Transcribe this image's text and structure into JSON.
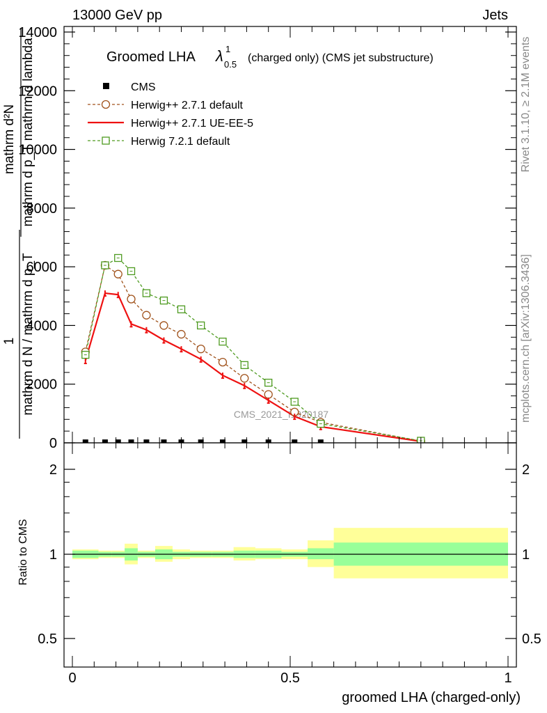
{
  "header": {
    "energy_label": "13000 GeV pp",
    "category_label": "Jets"
  },
  "side_labels": {
    "rivet": "Rivet 3.1.10, ≥ 2.1M events",
    "mcplots": "mcplots.cern.ch [arXiv:1306.3436]"
  },
  "watermark": "CMS_2021_I1920187",
  "colors": {
    "cms": "#000000",
    "herwig_default": "#a0521b",
    "herwig_ueee5": "#ee1111",
    "herwig72": "#4d9a1f",
    "band_inner": "#99ff99",
    "band_outer": "#ffff99"
  },
  "chart_data": [
    {
      "type": "line",
      "title_main": "Groomed LHA",
      "title_symbol": "λ",
      "title_sup": "1",
      "title_sub": "0.5",
      "title_rest": "(charged only) (CMS jet substructure)",
      "ylabel_top": "mathrm d²N",
      "ylabel_bottom": "mathrm d p_T mathrm d lambda",
      "ylabel_factor_num": "1",
      "ylabel_factor_den": "mathrm d N / mathrm d p_T",
      "xlim": [
        -0.02,
        1.02
      ],
      "ylim": [
        0,
        14000
      ],
      "yticks": [
        0,
        2000,
        4000,
        6000,
        8000,
        10000,
        12000,
        14000
      ],
      "ytick_labels": [
        "0",
        "2000",
        "4000",
        "6000",
        "8000",
        "10000",
        "12000",
        "14000"
      ],
      "x": [
        0.03,
        0.075,
        0.105,
        0.135,
        0.17,
        0.21,
        0.25,
        0.295,
        0.345,
        0.395,
        0.45,
        0.51,
        0.57,
        0.8
      ],
      "series": [
        {
          "name": "CMS",
          "style": "markers",
          "values": [
            20,
            20,
            20,
            20,
            20,
            20,
            20,
            20,
            20,
            20,
            20,
            20,
            20,
            null
          ]
        },
        {
          "name": "Herwig++ 2.7.1 default",
          "style": "dashed-circle",
          "values": [
            3100,
            6050,
            5750,
            4900,
            4350,
            4000,
            3700,
            3200,
            2750,
            2200,
            1650,
            1050,
            700,
            60
          ]
        },
        {
          "name": "Herwig++ 2.7.1 UE-EE-5",
          "style": "solid",
          "values": [
            2800,
            5100,
            5050,
            4050,
            3850,
            3500,
            3200,
            2850,
            2300,
            1950,
            1450,
            900,
            550,
            50
          ]
        },
        {
          "name": "Herwig 7.2.1 default",
          "style": "dashed-square",
          "values": [
            3000,
            6050,
            6300,
            5850,
            5100,
            4850,
            4550,
            4000,
            3450,
            2650,
            2050,
            1400,
            650,
            70
          ]
        }
      ]
    },
    {
      "type": "area",
      "ylabel": "Ratio to CMS",
      "xlabel": "groomed LHA (charged-only)",
      "xlim": [
        -0.02,
        1.02
      ],
      "ylim": [
        0.4,
        2.4
      ],
      "yticks": [
        0.5,
        1,
        2
      ],
      "ytick_labels": [
        "0.5",
        "1",
        "2"
      ],
      "xticks": [
        0,
        0.5,
        1
      ],
      "xtick_labels": [
        "0",
        "0.5",
        "1"
      ],
      "bins": [
        {
          "x0": 0.0,
          "x1": 0.06,
          "in_lo": 0.97,
          "in_hi": 1.03,
          "out_lo": 0.96,
          "out_hi": 1.04
        },
        {
          "x0": 0.06,
          "x1": 0.09,
          "in_lo": 0.98,
          "in_hi": 1.02,
          "out_lo": 0.97,
          "out_hi": 1.03
        },
        {
          "x0": 0.09,
          "x1": 0.12,
          "in_lo": 0.98,
          "in_hi": 1.02,
          "out_lo": 0.97,
          "out_hi": 1.03
        },
        {
          "x0": 0.12,
          "x1": 0.15,
          "in_lo": 0.95,
          "in_hi": 1.05,
          "out_lo": 0.92,
          "out_hi": 1.09
        },
        {
          "x0": 0.15,
          "x1": 0.19,
          "in_lo": 0.98,
          "in_hi": 1.02,
          "out_lo": 0.97,
          "out_hi": 1.03
        },
        {
          "x0": 0.19,
          "x1": 0.23,
          "in_lo": 0.96,
          "in_hi": 1.04,
          "out_lo": 0.94,
          "out_hi": 1.07
        },
        {
          "x0": 0.23,
          "x1": 0.27,
          "in_lo": 0.98,
          "in_hi": 1.02,
          "out_lo": 0.96,
          "out_hi": 1.04
        },
        {
          "x0": 0.27,
          "x1": 0.32,
          "in_lo": 0.98,
          "in_hi": 1.02,
          "out_lo": 0.97,
          "out_hi": 1.03
        },
        {
          "x0": 0.32,
          "x1": 0.37,
          "in_lo": 0.98,
          "in_hi": 1.02,
          "out_lo": 0.97,
          "out_hi": 1.03
        },
        {
          "x0": 0.37,
          "x1": 0.42,
          "in_lo": 0.97,
          "in_hi": 1.03,
          "out_lo": 0.95,
          "out_hi": 1.06
        },
        {
          "x0": 0.42,
          "x1": 0.48,
          "in_lo": 0.97,
          "in_hi": 1.03,
          "out_lo": 0.96,
          "out_hi": 1.05
        },
        {
          "x0": 0.48,
          "x1": 0.54,
          "in_lo": 0.98,
          "in_hi": 1.02,
          "out_lo": 0.96,
          "out_hi": 1.04
        },
        {
          "x0": 0.54,
          "x1": 0.6,
          "in_lo": 0.96,
          "in_hi": 1.05,
          "out_lo": 0.9,
          "out_hi": 1.12
        },
        {
          "x0": 0.6,
          "x1": 1.0,
          "in_lo": 0.91,
          "in_hi": 1.1,
          "out_lo": 0.82,
          "out_hi": 1.24
        }
      ]
    }
  ]
}
